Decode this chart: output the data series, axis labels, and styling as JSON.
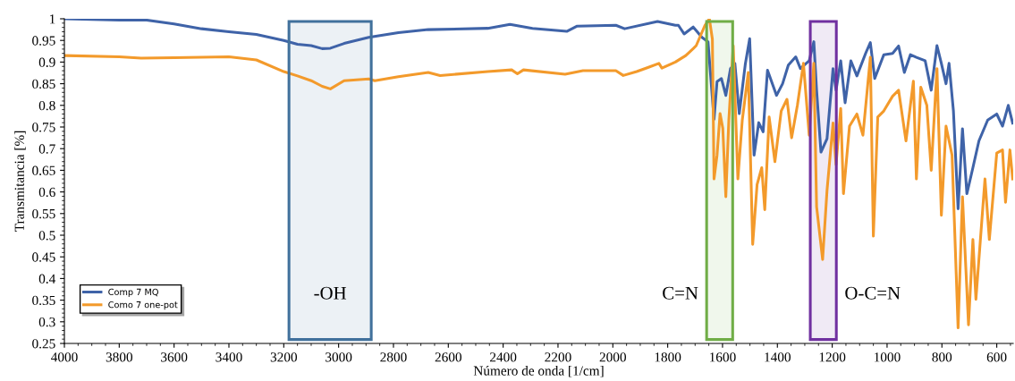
{
  "chart_data": {
    "type": "line",
    "xlabel": "Número de onda [1/cm]",
    "ylabel": "Transmitancia [%]",
    "xlim": [
      4000,
      540
    ],
    "xticks": [
      4000,
      3800,
      3600,
      3400,
      3200,
      3000,
      2800,
      2600,
      2400,
      2200,
      2000,
      1800,
      1600,
      1400,
      1200,
      1000,
      800,
      600
    ],
    "ylim": [
      0.25,
      1.0
    ],
    "yticks": [
      0.25,
      0.3,
      0.35,
      0.4,
      0.45,
      0.5,
      0.55,
      0.6,
      0.65,
      0.7,
      0.75,
      0.8,
      0.85,
      0.9,
      0.95,
      1
    ],
    "grid": false,
    "legend": "bottom left",
    "line_style": "solid",
    "marker": "none",
    "series": [
      {
        "name": "Comp 7 MQ",
        "color": "#3f63a8",
        "x": [
          4000,
          3800,
          3700,
          3600,
          3500,
          3400,
          3300,
          3200,
          3150,
          3100,
          3060,
          3030,
          2980,
          2890,
          2782,
          2673,
          2456,
          2375,
          2293,
          2168,
          2130,
          1989,
          1957,
          1837,
          1772,
          1761,
          1740,
          1707,
          1675,
          1653,
          1631,
          1620,
          1604,
          1588,
          1571,
          1555,
          1539,
          1517,
          1501,
          1485,
          1468,
          1452,
          1436,
          1403,
          1381,
          1360,
          1333,
          1316,
          1284,
          1267,
          1257,
          1241,
          1219,
          1197,
          1186,
          1169,
          1153,
          1132,
          1110,
          1077,
          1061,
          1045,
          1012,
          980,
          958,
          937,
          915,
          893,
          861,
          839,
          818,
          802,
          785,
          774,
          758,
          741,
          725,
          709,
          687,
          665,
          633,
          600,
          579,
          558,
          542
        ],
        "values": [
          1.0,
          0.997,
          0.997,
          0.988,
          0.977,
          0.97,
          0.964,
          0.95,
          0.941,
          0.938,
          0.931,
          0.932,
          0.943,
          0.957,
          0.968,
          0.975,
          0.978,
          0.987,
          0.978,
          0.971,
          0.983,
          0.985,
          0.977,
          0.994,
          0.985,
          0.985,
          0.965,
          0.981,
          0.957,
          0.947,
          0.768,
          0.855,
          0.862,
          0.823,
          0.885,
          0.897,
          0.781,
          0.895,
          0.954,
          0.685,
          0.76,
          0.739,
          0.881,
          0.823,
          0.85,
          0.893,
          0.912,
          0.885,
          0.903,
          0.947,
          0.835,
          0.692,
          0.723,
          0.885,
          0.835,
          0.903,
          0.806,
          0.903,
          0.868,
          0.922,
          0.945,
          0.862,
          0.917,
          0.92,
          0.937,
          0.876,
          0.917,
          0.911,
          0.903,
          0.835,
          0.938,
          0.897,
          0.85,
          0.897,
          0.787,
          0.561,
          0.746,
          0.596,
          0.656,
          0.718,
          0.766,
          0.78,
          0.752,
          0.8,
          0.759
        ]
      },
      {
        "name": "Como 7 one-pot",
        "color": "#f39a2b",
        "x": [
          4000,
          3800,
          3720,
          3600,
          3400,
          3300,
          3200,
          3150,
          3100,
          3060,
          3030,
          2980,
          2890,
          2868,
          2782,
          2673,
          2630,
          2456,
          2369,
          2348,
          2326,
          2174,
          2109,
          1989,
          1962,
          1913,
          1870,
          1832,
          1821,
          1772,
          1734,
          1707,
          1696,
          1664,
          1648,
          1637,
          1631,
          1620,
          1609,
          1599,
          1588,
          1577,
          1561,
          1544,
          1528,
          1506,
          1490,
          1474,
          1457,
          1446,
          1430,
          1409,
          1386,
          1365,
          1348,
          1327,
          1305,
          1284,
          1267,
          1257,
          1235,
          1219,
          1197,
          1186,
          1169,
          1159,
          1137,
          1110,
          1088,
          1061,
          1050,
          1034,
          1012,
          980,
          958,
          931,
          904,
          893,
          877,
          855,
          839,
          818,
          802,
          785,
          763,
          741,
          725,
          703,
          687,
          676,
          643,
          627,
          600,
          579,
          568,
          552,
          542
        ],
        "values": [
          0.915,
          0.912,
          0.909,
          0.91,
          0.912,
          0.905,
          0.878,
          0.868,
          0.857,
          0.844,
          0.838,
          0.857,
          0.861,
          0.857,
          0.866,
          0.876,
          0.869,
          0.878,
          0.882,
          0.873,
          0.882,
          0.872,
          0.88,
          0.88,
          0.869,
          0.878,
          0.888,
          0.897,
          0.886,
          0.9,
          0.915,
          0.931,
          0.938,
          0.985,
          1.0,
          0.953,
          0.63,
          0.685,
          0.781,
          0.747,
          0.589,
          0.766,
          0.938,
          0.63,
          0.766,
          0.876,
          0.479,
          0.617,
          0.656,
          0.559,
          0.773,
          0.67,
          0.787,
          0.814,
          0.725,
          0.8,
          0.897,
          0.731,
          0.897,
          0.566,
          0.444,
          0.603,
          0.759,
          0.663,
          0.793,
          0.596,
          0.752,
          0.78,
          0.731,
          0.911,
          0.498,
          0.773,
          0.787,
          0.821,
          0.835,
          0.718,
          0.856,
          0.63,
          0.842,
          0.8,
          0.65,
          0.885,
          0.546,
          0.752,
          0.685,
          0.286,
          0.589,
          0.293,
          0.49,
          0.352,
          0.63,
          0.49,
          0.69,
          0.697,
          0.576,
          0.697,
          0.63
        ]
      }
    ],
    "bands": [
      {
        "axis": "x",
        "from": 3181,
        "to": 2881,
        "color": "#41719c",
        "label": "-OH"
      },
      {
        "axis": "x",
        "from": 1658,
        "to": 1563,
        "color": "#70ad47",
        "label": "C=N"
      },
      {
        "axis": "x",
        "from": 1280,
        "to": 1185,
        "color": "#7030a0",
        "label": "O-C=N"
      }
    ]
  }
}
